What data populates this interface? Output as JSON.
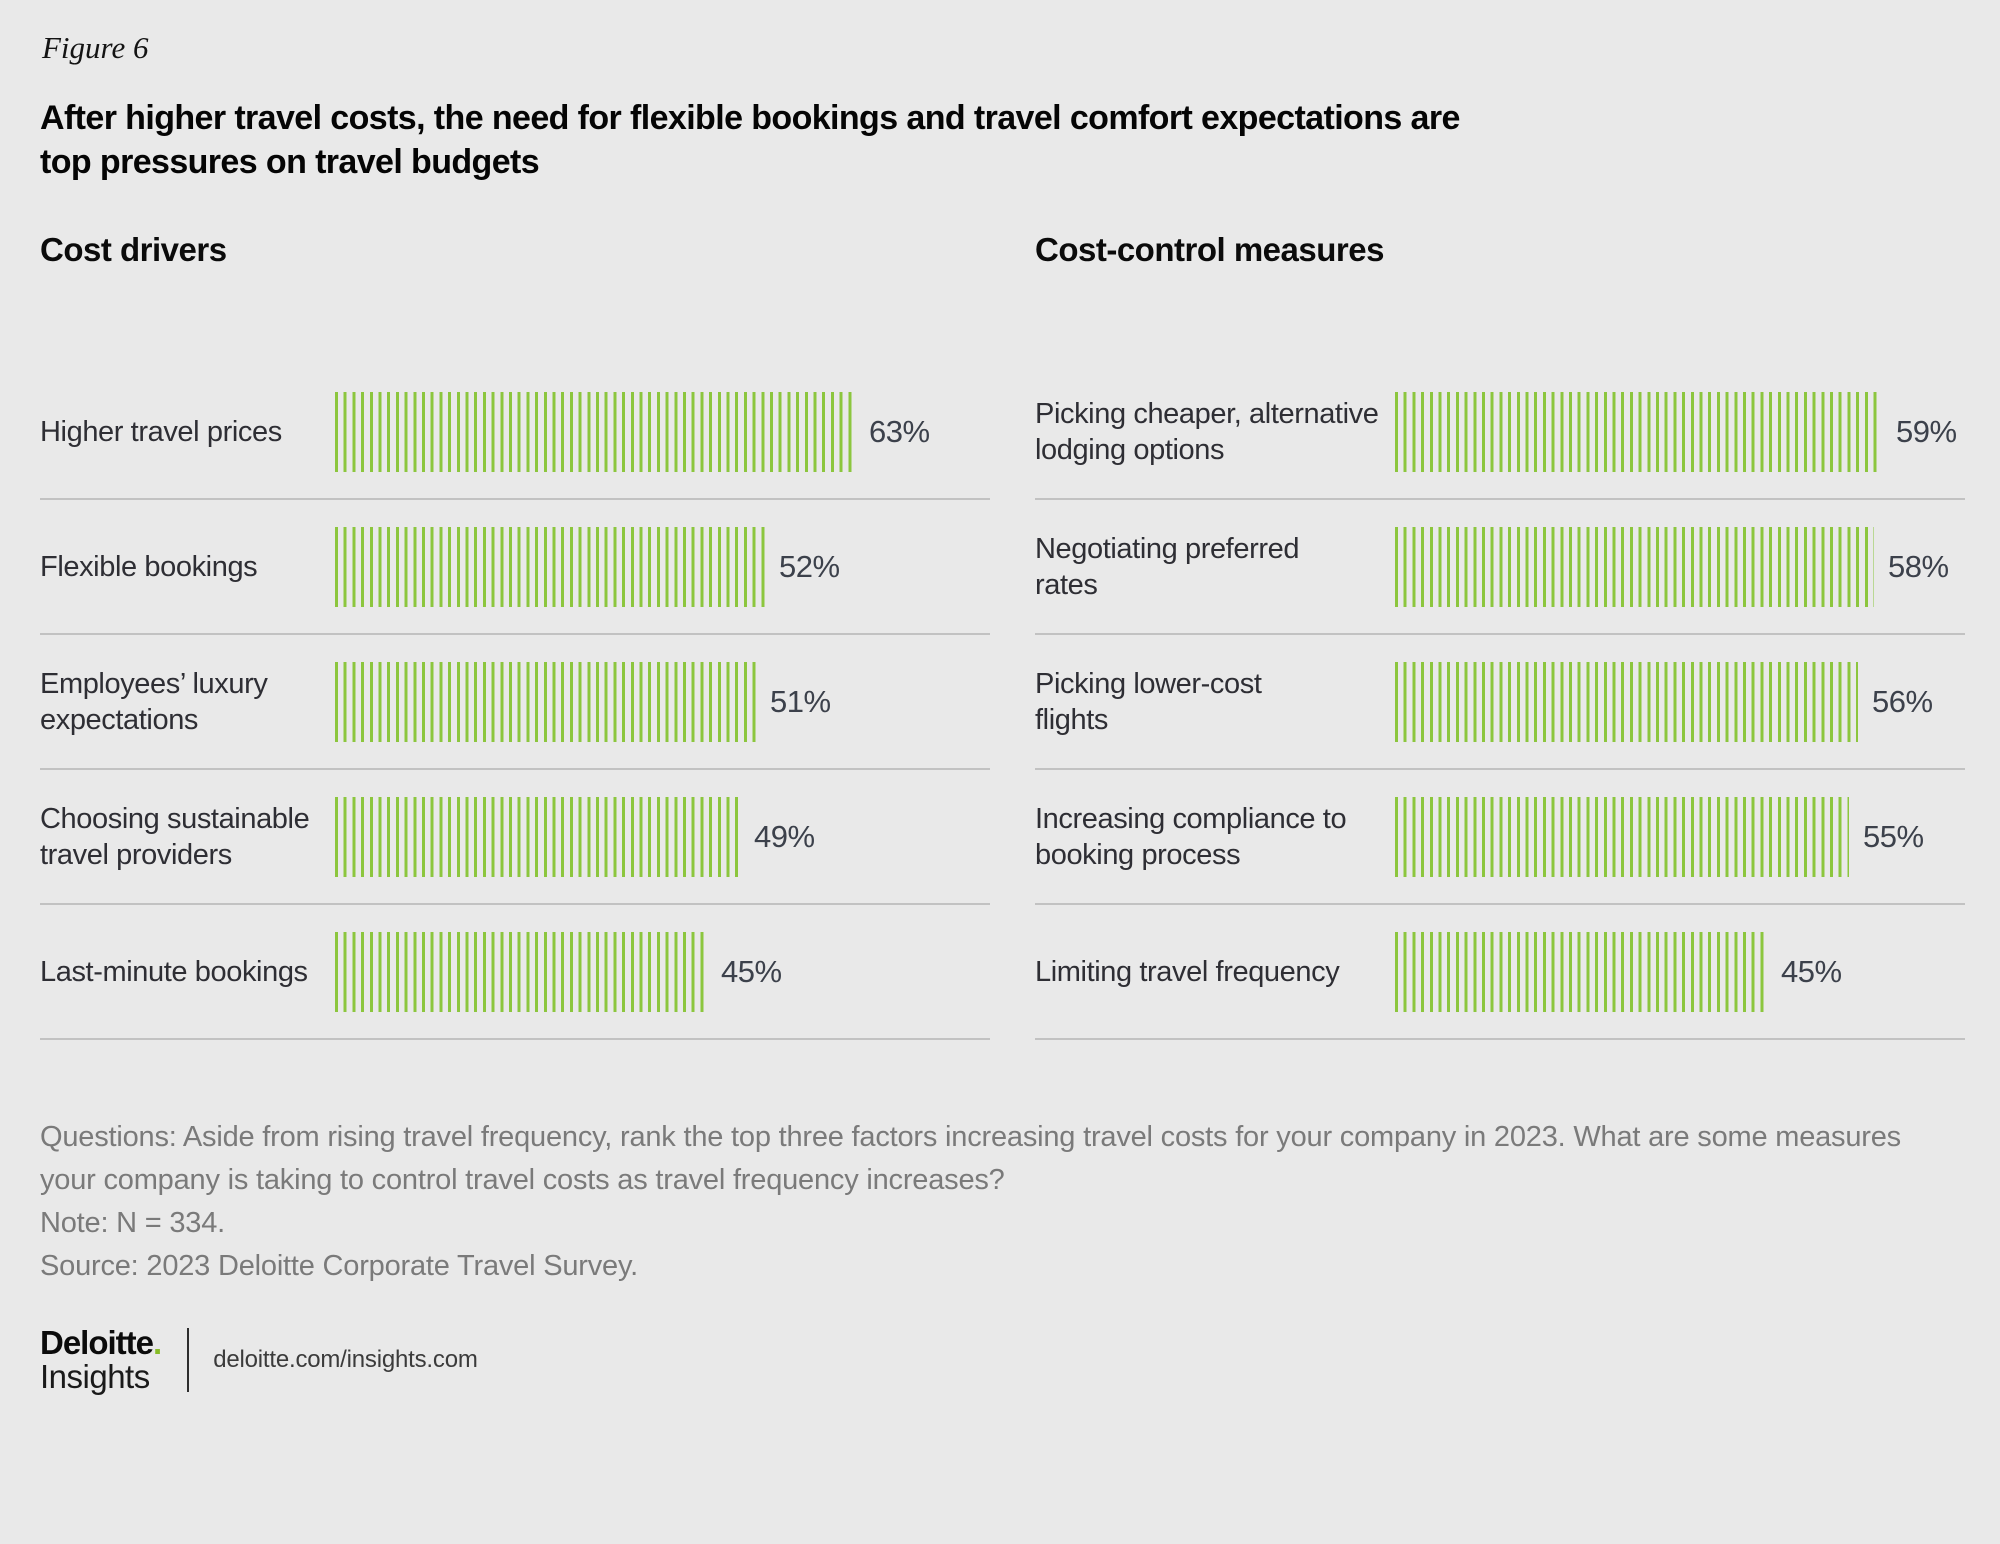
{
  "figure_label": "Figure 6",
  "title": "After higher travel costs, the need for flexible bookings and travel comfort expectations are\ntop pressures on travel budgets",
  "chart_data": [
    {
      "type": "bar",
      "orientation": "horizontal",
      "title": "Cost drivers",
      "unit": "%",
      "xlim": [
        0,
        100
      ],
      "grid": false,
      "legend": "none",
      "bar_style": "vertical-green-stripes",
      "categories": [
        "Higher travel prices",
        "Flexible bookings",
        "Employees’ luxury\nexpectations",
        "Choosing sustainable\ntravel providers",
        "Last-minute bookings"
      ],
      "values": [
        63,
        52,
        51,
        49,
        45
      ]
    },
    {
      "type": "bar",
      "orientation": "horizontal",
      "title": "Cost-control measures",
      "unit": "%",
      "xlim": [
        0,
        100
      ],
      "grid": false,
      "legend": "none",
      "bar_style": "vertical-green-stripes",
      "categories": [
        "Picking cheaper, alternative\nlodging options",
        "Negotiating preferred\nrates",
        "Picking lower-cost\nflights",
        "Increasing compliance to\nbooking process",
        "Limiting travel frequency"
      ],
      "values": [
        59,
        58,
        56,
        55,
        45
      ]
    }
  ],
  "footer": {
    "questions": "Questions: Aside from rising travel frequency, rank the top three factors increasing travel costs for your company in 2023. What are some measures\nyour company is taking to control travel costs as travel frequency increases?",
    "note": "Note: N = 334.",
    "source": "Source: 2023 Deloitte Corporate Travel Survey."
  },
  "logo": {
    "brand": "Deloitte",
    "brand_dot": ".",
    "sub": "Insights",
    "url": "deloitte.com/insights.com"
  },
  "colors": {
    "bar_green": "#8CC63E",
    "dot_green": "#86BC25",
    "background": "#E9E9E9",
    "divider": "#C2C2C2",
    "label_text": "#2E2E34",
    "value_text": "#3C414B",
    "footer_text": "#7A7A7A"
  }
}
